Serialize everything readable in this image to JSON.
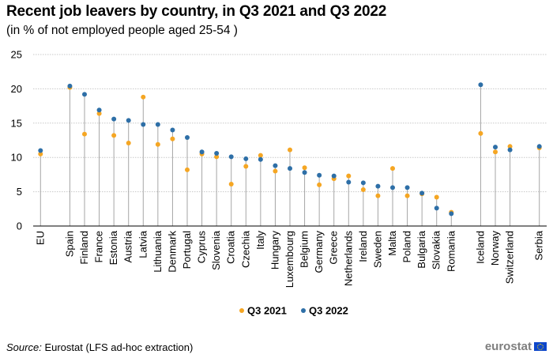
{
  "title": "Recent job leavers by country, in Q3 2021 and Q3 2022",
  "subtitle": "(in % of not employed people aged 25-54 )",
  "source": {
    "label": "Source:",
    "text": "Eurostat (LFS ad-hoc extraction)"
  },
  "logo": {
    "text": "eurostat",
    "icon": "eu-flag-icon"
  },
  "colors": {
    "q3_2021": "#f5a623",
    "q3_2022": "#2e6fa7",
    "grid": "#c8c8c8",
    "stem": "#a6a6a6",
    "axis": "#000000"
  },
  "chart_data": {
    "type": "scatter",
    "title": "Recent job leavers by country, in Q3 2021 and Q3 2022",
    "subtitle": "(in % of not employed people aged 25-54 )",
    "xlabel": "",
    "ylabel": "",
    "ylim": [
      0,
      25
    ],
    "yticks": [
      0,
      5,
      10,
      15,
      20,
      25
    ],
    "grid": true,
    "legend_position": "bottom-center",
    "categories": [
      "EU",
      "",
      "Spain",
      "Finland",
      "France",
      "Estonia",
      "Austria",
      "Latvia",
      "Lithuania",
      "Denmark",
      "Portugal",
      "Cyprus",
      "Slovenia",
      "Croatia",
      "Czechia",
      "Italy",
      "Hungary",
      "Luxembourg",
      "Belgium",
      "Germany",
      "Greece",
      "Netherlands",
      "Ireland",
      "Sweden",
      "Malta",
      "Poland",
      "Bulgaria",
      "Slovakia",
      "Romania",
      "",
      "Iceland",
      "Norway",
      "Switzerland",
      "",
      "Serbia"
    ],
    "series": [
      {
        "name": "Q3 2021",
        "values": [
          10.5,
          null,
          20.2,
          13.4,
          16.4,
          13.2,
          12.1,
          18.8,
          11.9,
          12.7,
          8.2,
          10.5,
          10.1,
          6.1,
          8.7,
          10.3,
          8.0,
          11.1,
          8.5,
          6.0,
          6.9,
          7.3,
          5.3,
          4.4,
          8.4,
          4.4,
          4.7,
          4.2,
          2.0,
          null,
          13.5,
          10.8,
          11.6,
          null,
          11.4
        ],
        "color": "#f5a623"
      },
      {
        "name": "Q3 2022",
        "values": [
          11.0,
          null,
          20.4,
          19.2,
          16.9,
          15.6,
          15.4,
          14.8,
          14.8,
          14.0,
          12.9,
          10.8,
          10.6,
          10.1,
          9.8,
          9.7,
          8.8,
          8.4,
          7.8,
          7.4,
          7.3,
          6.4,
          6.3,
          5.8,
          5.6,
          5.6,
          4.8,
          2.6,
          1.8,
          null,
          20.6,
          11.5,
          11.1,
          null,
          11.6
        ],
        "color": "#2e6fa7"
      }
    ]
  }
}
